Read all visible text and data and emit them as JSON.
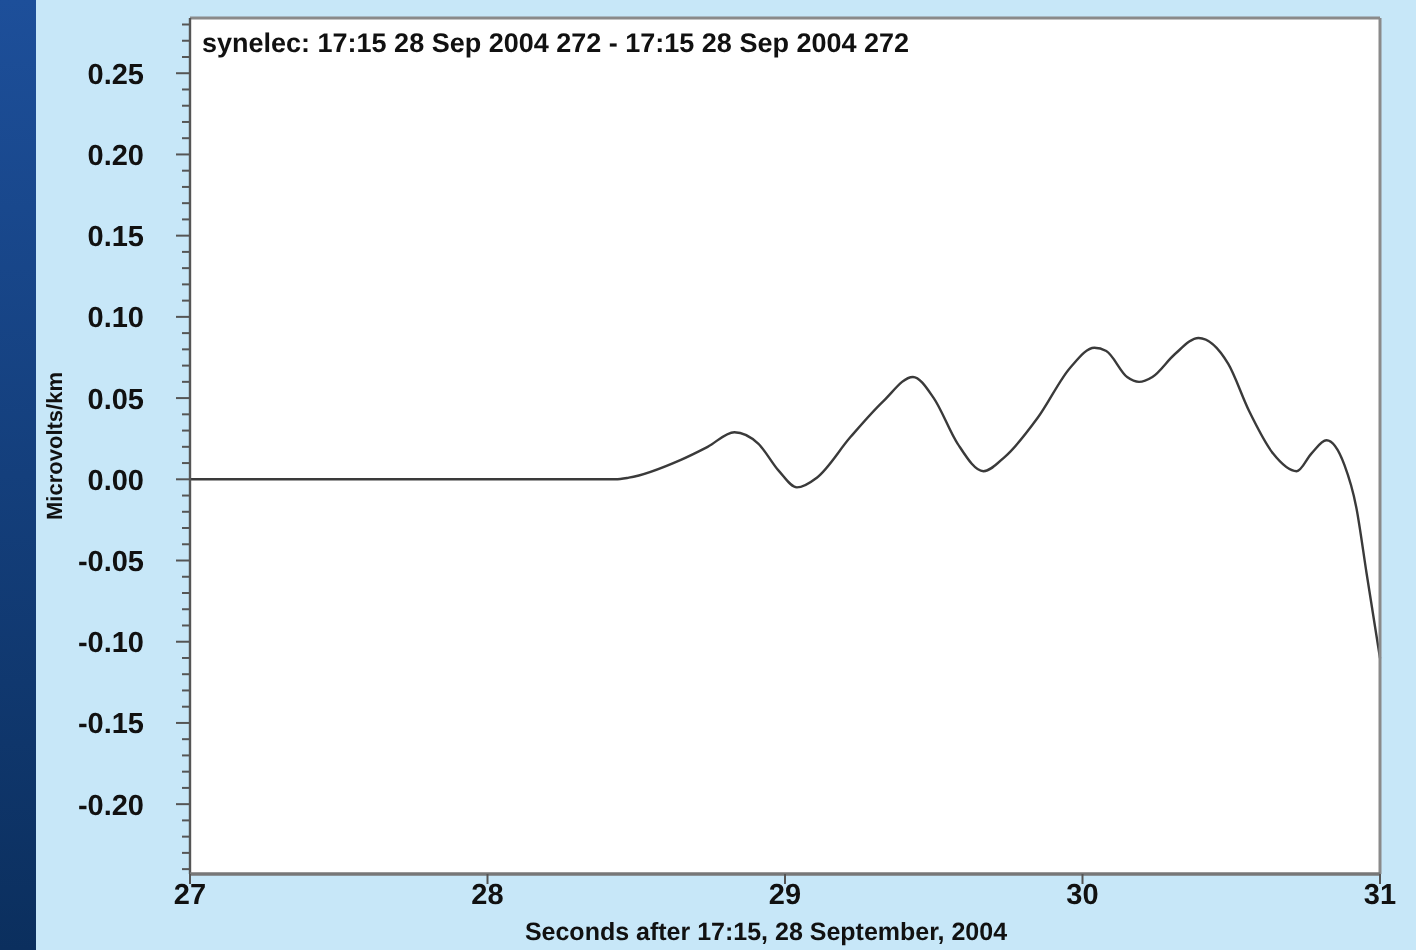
{
  "chart_data": {
    "type": "line",
    "title": "synelec: 17:15 28 Sep 2004 272 - 17:15 28 Sep 2004 272",
    "xlabel": "Seconds after 17:15, 28 September, 2004",
    "ylabel": "Microvolts/km",
    "x": [
      27,
      28.43,
      28.475,
      28.65,
      28.74,
      28.83,
      28.91,
      28.98,
      29.04,
      29.107,
      29.22,
      29.33,
      29.43,
      29.5,
      29.58,
      29.667,
      29.74,
      29.85,
      29.96,
      30.04,
      30.08,
      30.15,
      30.19,
      30.235,
      30.31,
      30.39,
      30.49,
      30.56,
      30.64,
      30.72,
      30.77,
      30.82,
      30.88,
      30.92,
      30.955,
      31
    ],
    "series": [
      {
        "color": "#3a3a3a",
        "values": [
          0,
          0,
          0.001,
          0.012,
          0.02,
          0.029,
          0.022,
          0.005,
          -0.005,
          0.001,
          0.026,
          0.048,
          0.063,
          0.05,
          0.022,
          0.005,
          0.014,
          0.038,
          0.069,
          0.081,
          0.079,
          0.063,
          0.06,
          0.063,
          0.077,
          0.087,
          0.071,
          0.042,
          0.016,
          0.005,
          0.016,
          0.024,
          0.009,
          -0.017,
          -0.058,
          -0.11
        ]
      }
    ],
    "xlim": [
      27,
      31
    ],
    "xticks": [
      27,
      28,
      29,
      30,
      31
    ],
    "ylim": [
      -0.243,
      0.284
    ],
    "yticks": [
      {
        "value": -0.24,
        "label": null
      },
      {
        "value": -0.23,
        "label": null
      },
      {
        "value": -0.22,
        "label": null
      },
      {
        "value": -0.21,
        "label": null
      },
      {
        "value": -0.2,
        "label": "-0.20"
      },
      {
        "value": -0.19,
        "label": null
      },
      {
        "value": -0.18,
        "label": null
      },
      {
        "value": -0.17,
        "label": null
      },
      {
        "value": -0.16,
        "label": null
      },
      {
        "value": -0.15,
        "label": "-0.15"
      },
      {
        "value": -0.14,
        "label": null
      },
      {
        "value": -0.13,
        "label": null
      },
      {
        "value": -0.12,
        "label": null
      },
      {
        "value": -0.11,
        "label": null
      },
      {
        "value": -0.1,
        "label": "-0.10"
      },
      {
        "value": -0.09,
        "label": null
      },
      {
        "value": -0.08,
        "label": null
      },
      {
        "value": -0.07,
        "label": null
      },
      {
        "value": -0.06,
        "label": null
      },
      {
        "value": -0.05,
        "label": "-0.05"
      },
      {
        "value": -0.04,
        "label": null
      },
      {
        "value": -0.03,
        "label": null
      },
      {
        "value": -0.02,
        "label": null
      },
      {
        "value": -0.01,
        "label": null
      },
      {
        "value": 0,
        "label": "0.00"
      },
      {
        "value": 0.01,
        "label": null
      },
      {
        "value": 0.02,
        "label": null
      },
      {
        "value": 0.03,
        "label": null
      },
      {
        "value": 0.04,
        "label": null
      },
      {
        "value": 0.05,
        "label": "0.05"
      },
      {
        "value": 0.06,
        "label": null
      },
      {
        "value": 0.07,
        "label": null
      },
      {
        "value": 0.08,
        "label": null
      },
      {
        "value": 0.09,
        "label": null
      },
      {
        "value": 0.1,
        "label": "0.10"
      },
      {
        "value": 0.11,
        "label": null
      },
      {
        "value": 0.12,
        "label": null
      },
      {
        "value": 0.13,
        "label": null
      },
      {
        "value": 0.14,
        "label": null
      },
      {
        "value": 0.15,
        "label": "0.15"
      },
      {
        "value": 0.16,
        "label": null
      },
      {
        "value": 0.17,
        "label": null
      },
      {
        "value": 0.18,
        "label": null
      },
      {
        "value": 0.19,
        "label": null
      },
      {
        "value": 0.2,
        "label": "0.20"
      },
      {
        "value": 0.21,
        "label": null
      },
      {
        "value": 0.22,
        "label": null
      },
      {
        "value": 0.23,
        "label": null
      },
      {
        "value": 0.24,
        "label": null
      },
      {
        "value": 0.25,
        "label": "0.25"
      },
      {
        "value": 0.26,
        "label": null
      },
      {
        "value": 0.27,
        "label": null
      },
      {
        "value": 0.28,
        "label": null
      }
    ]
  }
}
